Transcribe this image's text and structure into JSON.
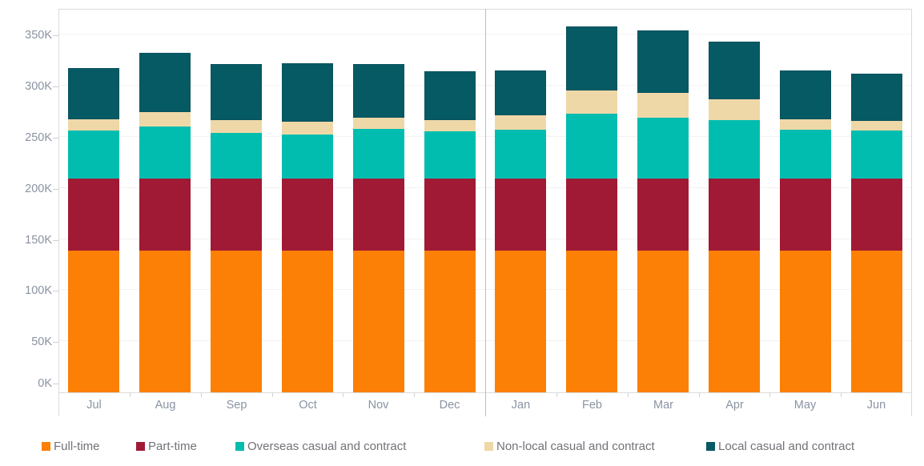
{
  "chart_data": {
    "type": "bar",
    "variant": "stacked-column",
    "title": "",
    "xlabel": "",
    "ylabel": "",
    "unit": "thousands",
    "categories": [
      "Jul",
      "Aug",
      "Sep",
      "Oct",
      "Nov",
      "Dec",
      "Jan",
      "Feb",
      "Mar",
      "Apr",
      "May",
      "Jun"
    ],
    "panel_split_index": 6,
    "yaxis": {
      "tick_values": [
        0,
        50,
        100,
        150,
        200,
        250,
        300,
        350
      ],
      "tick_labels": [
        "0K",
        "50K",
        "100K",
        "150K",
        "200K",
        "250K",
        "300K",
        "350K"
      ],
      "max": 376,
      "grid": true
    },
    "legend_position": "bottom",
    "series": [
      {
        "name": "Full-time",
        "color": "#FB8005",
        "values": [
          139,
          139,
          139,
          139,
          139,
          139,
          139,
          139,
          139,
          139,
          139,
          139
        ]
      },
      {
        "name": "Part-time",
        "color": "#A01A35",
        "values": [
          70,
          70,
          70,
          70,
          70,
          70,
          70,
          70,
          70,
          70,
          70,
          70
        ]
      },
      {
        "name": "Overseas casual and contract",
        "color": "#00BDB0",
        "values": [
          47,
          51,
          45,
          43,
          49,
          46,
          48,
          64,
          60,
          57,
          48,
          47
        ]
      },
      {
        "name": "Non-local casual and contract",
        "color": "#EFD8A7",
        "values": [
          11,
          14,
          12,
          13,
          11,
          11,
          14,
          22,
          24,
          21,
          10,
          10
        ]
      },
      {
        "name": "Local casual and contract",
        "color": "#065A64",
        "values": [
          50,
          58,
          55,
          57,
          52,
          48,
          44,
          63,
          61,
          56,
          48,
          46
        ]
      }
    ]
  }
}
